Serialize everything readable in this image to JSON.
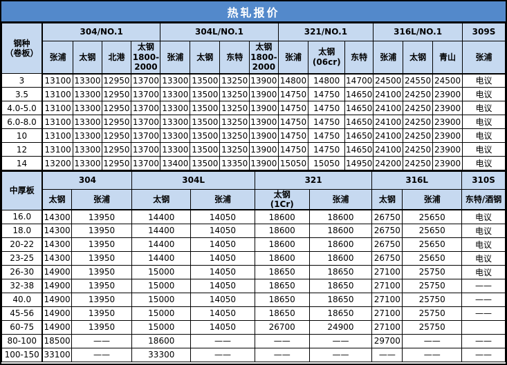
{
  "title": "热轧报价",
  "colors": {
    "title_bg": "#5389cb",
    "title_text": "#ffffff",
    "header_bg": "#c6d9f0",
    "border": "#000000",
    "cell_bg": "#ffffff",
    "text": "#000000"
  },
  "coil_table": {
    "corner": "钢种\n（卷板）",
    "groups": [
      {
        "label": "304/NO.1",
        "mills": [
          "张浦",
          "太钢",
          "北港",
          "太钢\n1800-\n2000"
        ]
      },
      {
        "label": "304L/NO.1",
        "mills": [
          "张浦",
          "太钢",
          "东特",
          "太钢\n1800-\n2000"
        ]
      },
      {
        "label": "321/NO.1",
        "mills": [
          "张浦",
          "太钢\n(06cr)",
          "东特"
        ]
      },
      {
        "label": "316L/NO.1",
        "mills": [
          "张浦",
          "太钢",
          "青山"
        ]
      },
      {
        "label": "309S",
        "mills": [
          "张浦"
        ]
      }
    ],
    "rows": [
      {
        "label": "3",
        "values": [
          "13100",
          "13300",
          "12950",
          "13700",
          "13300",
          "13500",
          "13250",
          "13900",
          "14800",
          "14800",
          "14700",
          "24500",
          "24550",
          "24500",
          "电议"
        ]
      },
      {
        "label": "3.5",
        "values": [
          "13100",
          "13300",
          "12950",
          "13700",
          "13300",
          "13500",
          "13250",
          "13900",
          "14750",
          "14750",
          "14650",
          "24100",
          "24250",
          "23900",
          "电议"
        ]
      },
      {
        "label": "4.0-5.0",
        "values": [
          "13100",
          "13300",
          "12950",
          "13700",
          "13300",
          "13500",
          "13250",
          "13900",
          "14750",
          "14750",
          "14650",
          "24100",
          "24250",
          "23900",
          "电议"
        ]
      },
      {
        "label": "6.0-8.0",
        "values": [
          "13100",
          "13300",
          "12950",
          "13700",
          "13300",
          "13500",
          "13250",
          "13900",
          "14750",
          "14750",
          "14650",
          "24100",
          "24250",
          "23900",
          "电议"
        ]
      },
      {
        "label": "10",
        "values": [
          "13100",
          "13300",
          "12950",
          "13700",
          "13300",
          "13500",
          "13250",
          "13900",
          "14750",
          "14750",
          "14650",
          "24100",
          "24250",
          "23900",
          "电议"
        ]
      },
      {
        "label": "12",
        "values": [
          "13100",
          "13300",
          "12950",
          "13700",
          "13300",
          "13500",
          "13250",
          "13900",
          "14750",
          "14750",
          "14650",
          "24100",
          "24250",
          "23900",
          "电议"
        ]
      },
      {
        "label": "14",
        "values": [
          "13200",
          "13300",
          "12950",
          "13700",
          "13400",
          "13500",
          "13350",
          "13900",
          "15050",
          "15050",
          "14950",
          "24200",
          "24250",
          "23900",
          "电议"
        ]
      }
    ]
  },
  "plate_table": {
    "corner": "中厚板",
    "groups": [
      {
        "label": "304",
        "mills": [
          "太钢",
          "张浦"
        ]
      },
      {
        "label": "304L",
        "mills": [
          "太钢",
          "张浦"
        ]
      },
      {
        "label": "321",
        "mills": [
          "太钢\n(1Cr)",
          "张浦"
        ]
      },
      {
        "label": "316L",
        "mills": [
          "太钢",
          "张浦"
        ]
      },
      {
        "label": "310S",
        "mills": [
          "东特/酒钢"
        ]
      }
    ],
    "rows": [
      {
        "label": "16.0",
        "values": [
          "14300",
          "13950",
          "14400",
          "14050",
          "18600",
          "18600",
          "26750",
          "25650",
          "电议"
        ]
      },
      {
        "label": "18.0",
        "values": [
          "14300",
          "13950",
          "14400",
          "14050",
          "18600",
          "18600",
          "26750",
          "25650",
          "电议"
        ]
      },
      {
        "label": "20-22",
        "values": [
          "14300",
          "13950",
          "14400",
          "14050",
          "18600",
          "18600",
          "26750",
          "25650",
          "电议"
        ]
      },
      {
        "label": "23-25",
        "values": [
          "14300",
          "13950",
          "14400",
          "14050",
          "18600",
          "18600",
          "26750",
          "25650",
          "电议"
        ]
      },
      {
        "label": "26-30",
        "values": [
          "14900",
          "13950",
          "15000",
          "14050",
          "18650",
          "18650",
          "27100",
          "25750",
          "电议"
        ]
      },
      {
        "label": "32-38",
        "values": [
          "14900",
          "13950",
          "15000",
          "14050",
          "18650",
          "18650",
          "27100",
          "25750",
          "——"
        ]
      },
      {
        "label": "40.0",
        "values": [
          "14900",
          "13950",
          "15000",
          "14050",
          "18650",
          "18650",
          "27100",
          "25750",
          "——"
        ]
      },
      {
        "label": "45-56",
        "values": [
          "14900",
          "13950",
          "15000",
          "14050",
          "18650",
          "18650",
          "27100",
          "25750",
          "——"
        ]
      },
      {
        "label": "60-75",
        "values": [
          "14900",
          "13950",
          "15000",
          "14050",
          "26700",
          "24900",
          "27100",
          "25750",
          ""
        ]
      },
      {
        "label": "80-100",
        "values": [
          "18500",
          "——",
          "18600",
          "——",
          "——",
          "——",
          "29700",
          "——",
          "——"
        ]
      },
      {
        "label": "100-150",
        "values": [
          "33100",
          "——",
          "33300",
          "——",
          "——",
          "——",
          "——",
          "——",
          "——"
        ]
      }
    ]
  }
}
